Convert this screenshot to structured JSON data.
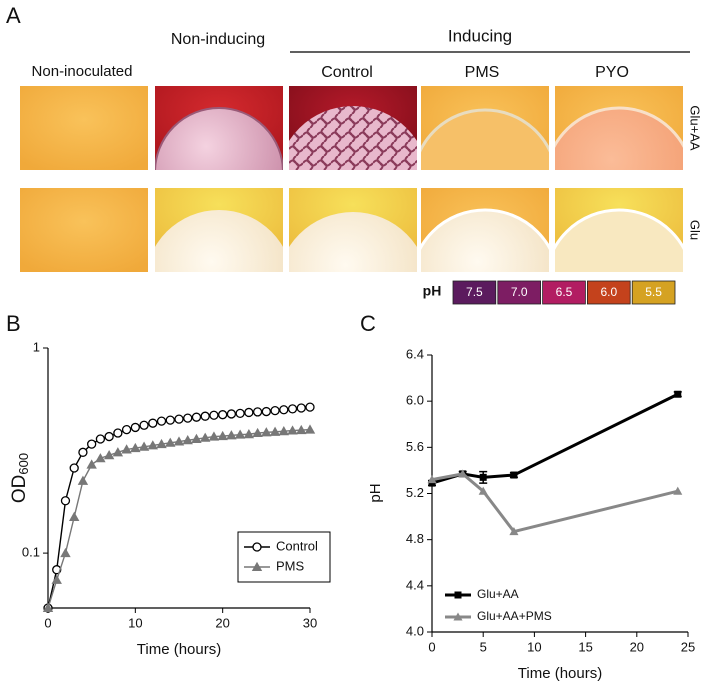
{
  "panel_a": {
    "panel": "A",
    "headers": {
      "non_inducing": "Non-inducing",
      "inducing": "Inducing"
    },
    "columns": [
      "Non-inoculated",
      "Control",
      "PMS",
      "PYO"
    ],
    "rows": [
      "Glu+AA",
      "Glu"
    ],
    "ph_label": "pH",
    "ph_scale": [
      {
        "label": "7.5",
        "color": "#5b1b5e"
      },
      {
        "label": "7.0",
        "color": "#7d1d63"
      },
      {
        "label": "6.5",
        "color": "#b21d62"
      },
      {
        "label": "6.0",
        "color": "#c4421c"
      },
      {
        "label": "5.5",
        "color": "#d5a222"
      }
    ]
  },
  "chart_data": [
    {
      "type": "line",
      "panel": "B",
      "x_label": "Time (hours)",
      "y_label": {
        "text": "OD",
        "subscript": "600"
      },
      "y_log": true,
      "xlim": [
        0,
        30
      ],
      "ylim": [
        0.054,
        1
      ],
      "xticks": [
        0,
        10,
        20,
        30
      ],
      "yticks": [
        0.1,
        1
      ],
      "legend": "lower right",
      "x": [
        0,
        1,
        2,
        3,
        4,
        5,
        6,
        7,
        8,
        9,
        10,
        11,
        12,
        13,
        14,
        15,
        16,
        17,
        18,
        19,
        20,
        21,
        22,
        23,
        24,
        25,
        26,
        27,
        28,
        29,
        30
      ],
      "series": [
        {
          "name": "Control",
          "color": "#000000",
          "marker": "open-circle",
          "values": [
            0.054,
            0.083,
            0.18,
            0.26,
            0.31,
            0.34,
            0.36,
            0.37,
            0.385,
            0.4,
            0.41,
            0.42,
            0.43,
            0.44,
            0.445,
            0.45,
            0.455,
            0.46,
            0.465,
            0.47,
            0.473,
            0.477,
            0.48,
            0.485,
            0.488,
            0.49,
            0.495,
            0.5,
            0.505,
            0.51,
            0.515
          ]
        },
        {
          "name": "PMS",
          "color": "#777777",
          "marker": "triangle",
          "values": [
            0.054,
            0.074,
            0.1,
            0.15,
            0.225,
            0.27,
            0.29,
            0.3,
            0.31,
            0.32,
            0.325,
            0.33,
            0.335,
            0.34,
            0.345,
            0.35,
            0.355,
            0.36,
            0.365,
            0.37,
            0.372,
            0.375,
            0.378,
            0.38,
            0.385,
            0.388,
            0.39,
            0.393,
            0.396,
            0.398,
            0.4
          ]
        }
      ]
    },
    {
      "type": "line",
      "panel": "C",
      "x_label": "Time (hours)",
      "y_label": "pH",
      "xlim": [
        0,
        25
      ],
      "ylim": [
        4.0,
        6.4
      ],
      "xticks": [
        0,
        5,
        10,
        15,
        20,
        25
      ],
      "yticks": [
        {
          "value": 4.0,
          "label": "4.0"
        },
        4.4,
        4.8,
        5.2,
        5.6,
        {
          "value": 6.0,
          "label": "6.0"
        },
        6.4
      ],
      "legend": "lower left",
      "x": [
        0,
        3,
        5,
        8,
        24
      ],
      "series": [
        {
          "name": "Glu+AA",
          "color": "#000000",
          "marker": "square",
          "values": [
            5.29,
            5.37,
            5.34,
            5.36,
            6.06
          ],
          "errors": [
            0.02,
            0.02,
            0.05,
            0.02,
            0.02
          ]
        },
        {
          "name": "Glu+AA+PMS",
          "color": "#888888",
          "marker": "triangle",
          "values": [
            5.32,
            5.37,
            5.22,
            4.87,
            5.22
          ]
        }
      ]
    }
  ]
}
